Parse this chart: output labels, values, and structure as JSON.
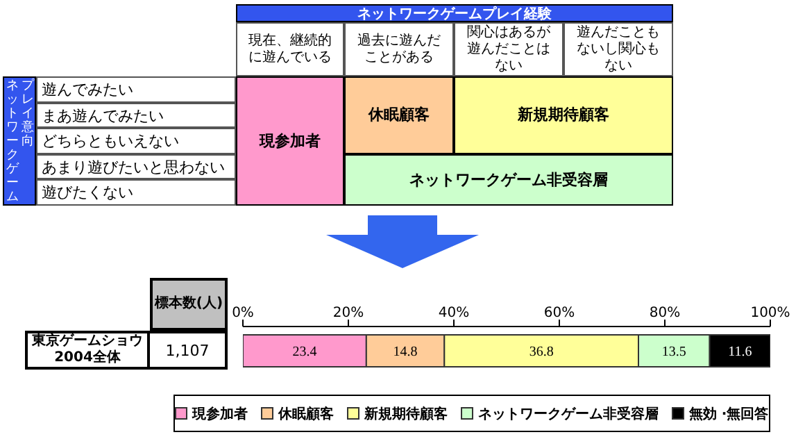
{
  "chart_data": [
    {
      "type": "other",
      "title": "ネットワークゲームプレイ経験",
      "ylabel": "ネットワークゲームプレイ意向",
      "categories": [
        "現在、継続的に遊んでいる",
        "過去に遊んだことがある",
        "関心はあるが遊んだことはない",
        "遊んだこともないし関心もない"
      ],
      "y_categories": [
        "遊んでみたい",
        "まあ遊んでみたい",
        "どちらともいえない",
        "あまり遊びたいと思わない",
        "遊びたくない"
      ],
      "annotations": [
        "現参加者",
        "休眠顧客",
        "新規期待顧客",
        "ネットワークゲーム非受容層"
      ],
      "colors": [
        "#ff99cc",
        "#ffcc99",
        "#ffff99",
        "#ccffcc"
      ]
    },
    {
      "type": "bar",
      "orientation": "horizontal",
      "stacked": true,
      "categories": [
        "東京ゲームショウ2004全体"
      ],
      "series": [
        {
          "name": "現参加者",
          "color": "#ff99cc",
          "values": [
            23.4
          ]
        },
        {
          "name": "休眠顧客",
          "color": "#ffcc99",
          "values": [
            14.8
          ]
        },
        {
          "name": "新規期待顧客",
          "color": "#ffff99",
          "values": [
            36.8
          ]
        },
        {
          "name": "ネットワークゲーム非受容層",
          "color": "#ccffcc",
          "values": [
            13.5
          ]
        },
        {
          "name": "無効 ·無回答",
          "color": "#000000",
          "values": [
            11.6
          ]
        }
      ],
      "xlim": [
        0,
        100
      ],
      "xticks": [
        {
          "value": 0,
          "label": "0%"
        },
        {
          "value": 20,
          "label": "20%"
        },
        {
          "value": 40,
          "label": "40%"
        },
        {
          "value": 60,
          "label": "60%"
        },
        {
          "value": 80,
          "label": "80%"
        },
        {
          "value": 100,
          "label": "100%"
        }
      ],
      "data_labels": true,
      "legend": "bottom",
      "annotations": [
        "標本数(人)",
        "1,107"
      ]
    }
  ]
}
